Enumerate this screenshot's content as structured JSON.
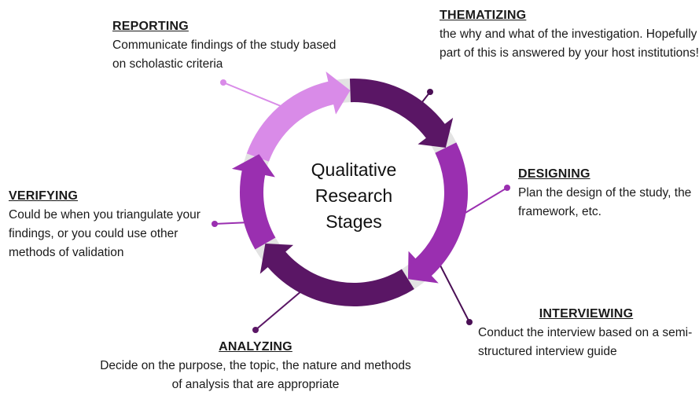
{
  "diagram": {
    "center_label": [
      "Qualitative",
      "Research",
      "Stages"
    ],
    "colors": {
      "light_purple": "#d98be8",
      "mid_purple": "#9a2fb0",
      "dark_purple": "#5a1665",
      "ring_background": "#e3e3e3",
      "connector_dot": "#4a0f55"
    },
    "stages": {
      "reporting": {
        "title": "REPORTING",
        "description": "Communicate findings of the study based on scholastic criteria"
      },
      "thematizing": {
        "title": "THEMATIZING",
        "description": "the why and what of the investigation. Hopefully part of this is answered by your host institutions!"
      },
      "designing": {
        "title": "DESIGNING",
        "description": "Plan the design of the study, the framework, etc."
      },
      "interviewing": {
        "title": "INTERVIEWING",
        "description": "Conduct the interview based on a semi-structured interview guide"
      },
      "analyzing": {
        "title": "ANALYZING",
        "description": "Decide on the purpose, the topic, the nature and methods of analysis that are appropriate"
      },
      "verifying": {
        "title": "VERIFYING",
        "description": "Could be when you triangulate your findings, or you could use other methods of validation"
      }
    }
  }
}
